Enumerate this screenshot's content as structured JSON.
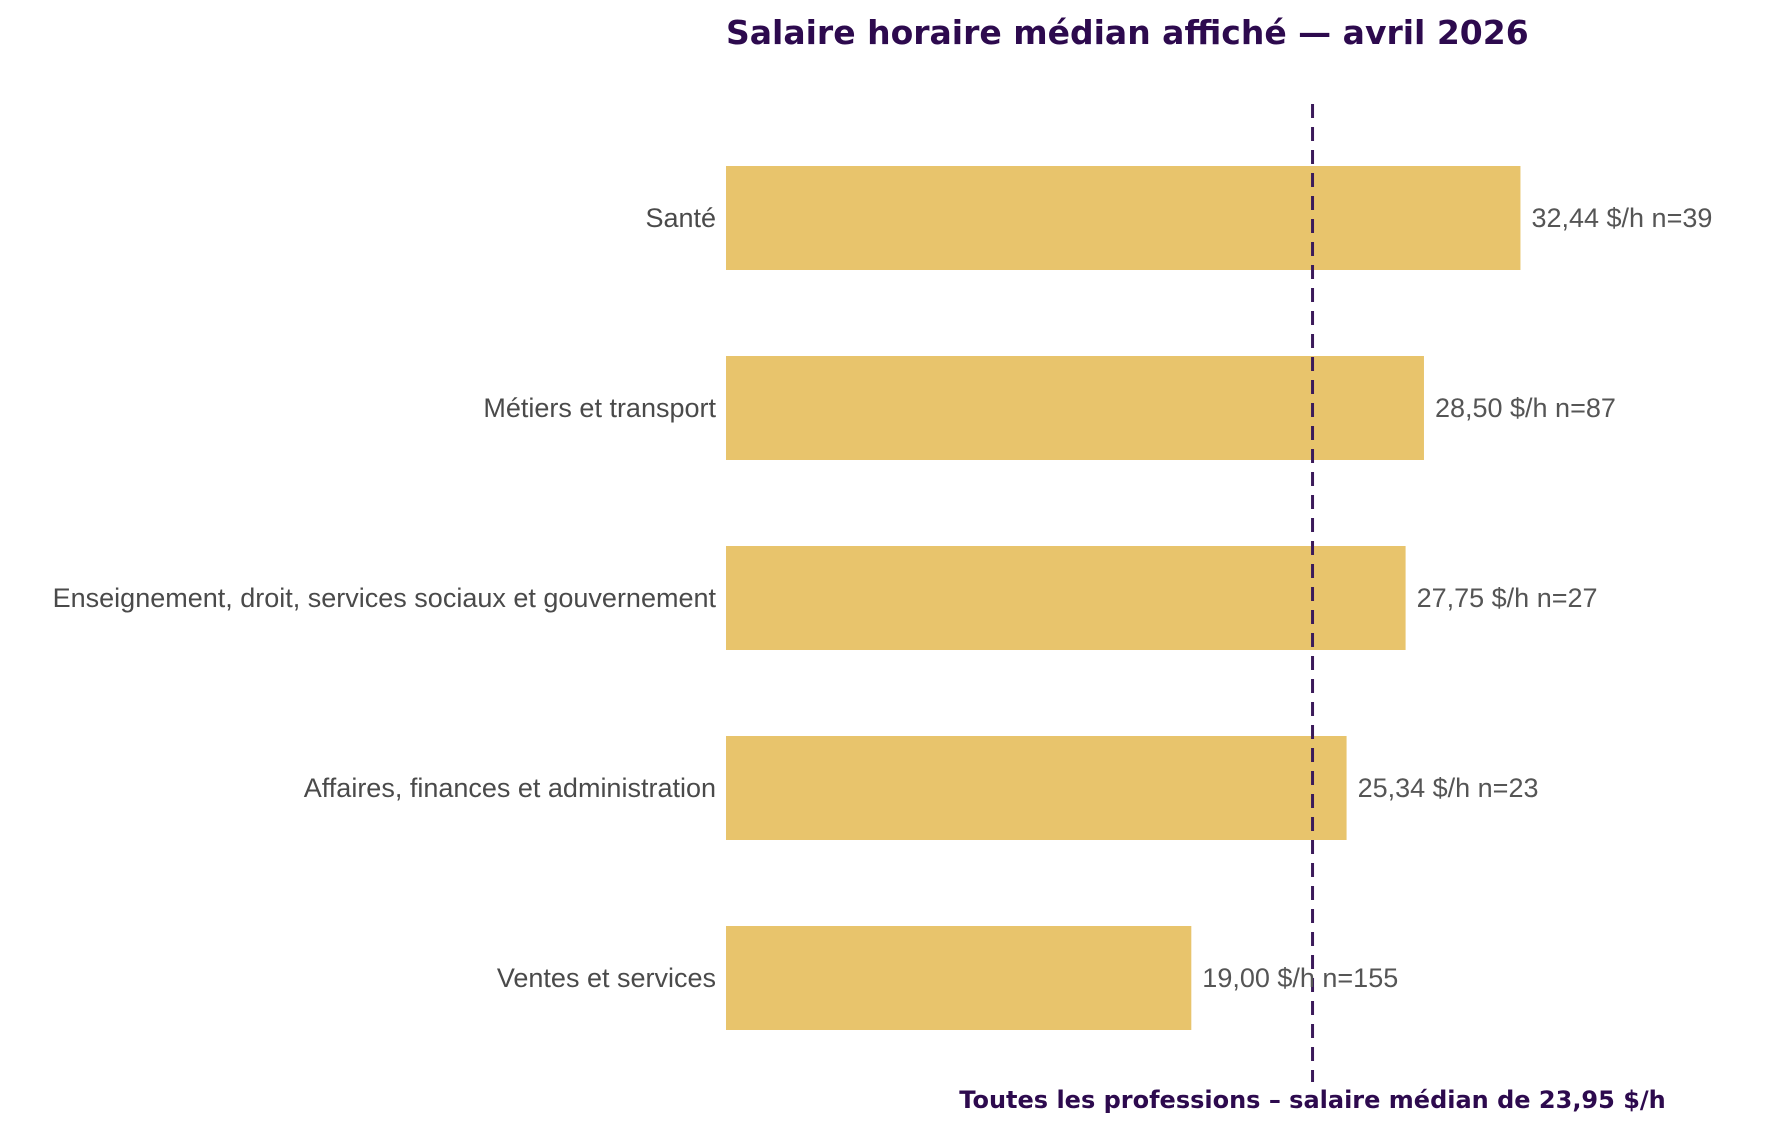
{
  "chart_data": {
    "type": "bar",
    "orientation": "horizontal",
    "title": "Salaire horaire médian affiché — avril 2026",
    "xlabel": "",
    "ylabel": "",
    "categories": [
      "Santé",
      "Métiers et transport",
      "Enseignement, droit, services sociaux et gouvernement",
      "Affaires, finances et administration",
      "Ventes et services"
    ],
    "values": [
      32.44,
      28.5,
      27.75,
      25.34,
      19.0
    ],
    "value_labels": [
      "32,44 $/h  n=39",
      "28,50 $/h  n=87",
      "27,75 $/h  n=27",
      "25,34 $/h  n=23",
      "19,00 $/h  n=155"
    ],
    "sample_sizes": [
      39,
      87,
      27,
      23,
      155
    ],
    "xlim": [
      0,
      36
    ],
    "grid": false,
    "legend": "none",
    "reference_line": {
      "value": 23.95,
      "label": "Toutes les professions – salaire médian de 23,95 $/h",
      "style": "dashed"
    },
    "colors": {
      "bar": "#e8c46c",
      "reference_line": "#3b1a5a",
      "title": "#2d0a4e"
    }
  }
}
